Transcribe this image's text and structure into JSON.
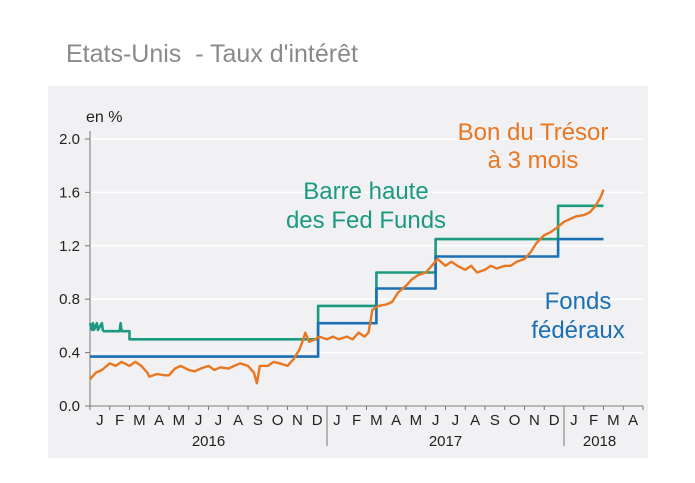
{
  "title": "Etats-Unis  - Taux d'intérêt",
  "colors": {
    "tbill": "#e87722",
    "fed_upper": "#1b9a80",
    "fed_funds": "#1a6fb5",
    "axis": "#777777",
    "grid": "#ffffff",
    "panel": "#f1f1f3"
  },
  "chart_data": {
    "type": "line",
    "ylabel": "en %",
    "ylim": [
      0,
      2.0
    ],
    "yticks": [
      "0.0",
      "0.4",
      "0.8",
      "1.2",
      "1.6",
      "2.0"
    ],
    "y_tick_values": [
      0,
      0.4,
      0.8,
      1.2,
      1.6,
      2.0
    ],
    "grid": true,
    "x_months": [
      "J",
      "F",
      "M",
      "A",
      "M",
      "J",
      "J",
      "A",
      "S",
      "O",
      "N",
      "D",
      "J",
      "F",
      "M",
      "A",
      "M",
      "J",
      "J",
      "A",
      "S",
      "O",
      "N",
      "D",
      "J",
      "F",
      "M",
      "A"
    ],
    "x_years": [
      "2016",
      "2017",
      "2018"
    ],
    "annotations": {
      "tbill": [
        "Bon du Trésor",
        "à 3 mois"
      ],
      "fed_upper": [
        "Barre haute",
        "des Fed Funds"
      ],
      "fed_funds": [
        "Fonds",
        "fédéraux"
      ]
    },
    "series": [
      {
        "key": "fed_upper",
        "points": [
          [
            0,
            0.62
          ],
          [
            0.1,
            0.57
          ],
          [
            0.15,
            0.62
          ],
          [
            0.2,
            0.57
          ],
          [
            0.35,
            0.62
          ],
          [
            0.4,
            0.57
          ],
          [
            0.6,
            0.62
          ],
          [
            0.65,
            0.57
          ],
          [
            0.7,
            0.56
          ],
          [
            1.5,
            0.56
          ],
          [
            1.55,
            0.62
          ],
          [
            1.6,
            0.56
          ],
          [
            2.0,
            0.56
          ],
          [
            2.0,
            0.5
          ],
          [
            11.55,
            0.5
          ],
          [
            11.55,
            0.75
          ],
          [
            14.5,
            0.75
          ],
          [
            14.5,
            1.0
          ],
          [
            17.5,
            1.0
          ],
          [
            17.5,
            1.25
          ],
          [
            23.7,
            1.25
          ],
          [
            23.7,
            1.5
          ],
          [
            26.0,
            1.5
          ]
        ]
      },
      {
        "key": "fed_funds",
        "points": [
          [
            0,
            0.37
          ],
          [
            11.55,
            0.37
          ],
          [
            11.55,
            0.62
          ],
          [
            14.5,
            0.62
          ],
          [
            14.5,
            0.88
          ],
          [
            17.5,
            0.88
          ],
          [
            17.5,
            1.12
          ],
          [
            23.7,
            1.12
          ],
          [
            23.7,
            1.25
          ],
          [
            26.0,
            1.25
          ]
        ]
      },
      {
        "key": "tbill",
        "points": [
          [
            0,
            0.2
          ],
          [
            0.3,
            0.25
          ],
          [
            0.6,
            0.27
          ],
          [
            1.0,
            0.32
          ],
          [
            1.3,
            0.3
          ],
          [
            1.6,
            0.33
          ],
          [
            2.0,
            0.3
          ],
          [
            2.3,
            0.33
          ],
          [
            2.6,
            0.3
          ],
          [
            2.9,
            0.25
          ],
          [
            3.0,
            0.22
          ],
          [
            3.4,
            0.24
          ],
          [
            3.8,
            0.23
          ],
          [
            4.0,
            0.23
          ],
          [
            4.3,
            0.28
          ],
          [
            4.6,
            0.3
          ],
          [
            5.0,
            0.27
          ],
          [
            5.3,
            0.26
          ],
          [
            5.6,
            0.28
          ],
          [
            6.0,
            0.3
          ],
          [
            6.3,
            0.27
          ],
          [
            6.6,
            0.29
          ],
          [
            7.0,
            0.28
          ],
          [
            7.3,
            0.3
          ],
          [
            7.6,
            0.32
          ],
          [
            8.0,
            0.3
          ],
          [
            8.3,
            0.25
          ],
          [
            8.45,
            0.17
          ],
          [
            8.6,
            0.3
          ],
          [
            9.0,
            0.3
          ],
          [
            9.3,
            0.33
          ],
          [
            9.6,
            0.32
          ],
          [
            10.0,
            0.3
          ],
          [
            10.3,
            0.35
          ],
          [
            10.6,
            0.42
          ],
          [
            10.8,
            0.5
          ],
          [
            10.9,
            0.55
          ],
          [
            11.1,
            0.48
          ],
          [
            11.4,
            0.5
          ],
          [
            11.6,
            0.52
          ],
          [
            12.0,
            0.5
          ],
          [
            12.3,
            0.52
          ],
          [
            12.6,
            0.5
          ],
          [
            13.0,
            0.52
          ],
          [
            13.3,
            0.5
          ],
          [
            13.6,
            0.55
          ],
          [
            13.9,
            0.52
          ],
          [
            14.1,
            0.55
          ],
          [
            14.3,
            0.72
          ],
          [
            14.6,
            0.75
          ],
          [
            15.0,
            0.76
          ],
          [
            15.3,
            0.78
          ],
          [
            15.6,
            0.85
          ],
          [
            16.0,
            0.9
          ],
          [
            16.3,
            0.95
          ],
          [
            16.6,
            0.98
          ],
          [
            17.0,
            1.0
          ],
          [
            17.3,
            1.05
          ],
          [
            17.6,
            1.1
          ],
          [
            18.0,
            1.05
          ],
          [
            18.3,
            1.08
          ],
          [
            18.6,
            1.05
          ],
          [
            19.0,
            1.02
          ],
          [
            19.3,
            1.05
          ],
          [
            19.6,
            1.0
          ],
          [
            20.0,
            1.02
          ],
          [
            20.3,
            1.05
          ],
          [
            20.6,
            1.03
          ],
          [
            21.0,
            1.05
          ],
          [
            21.3,
            1.05
          ],
          [
            21.6,
            1.08
          ],
          [
            22.0,
            1.1
          ],
          [
            22.3,
            1.15
          ],
          [
            22.6,
            1.22
          ],
          [
            23.0,
            1.28
          ],
          [
            23.3,
            1.3
          ],
          [
            23.6,
            1.33
          ],
          [
            24.0,
            1.38
          ],
          [
            24.3,
            1.4
          ],
          [
            24.6,
            1.42
          ],
          [
            25.0,
            1.43
          ],
          [
            25.3,
            1.45
          ],
          [
            25.6,
            1.5
          ],
          [
            25.8,
            1.55
          ],
          [
            25.9,
            1.58
          ],
          [
            26.0,
            1.62
          ]
        ]
      }
    ]
  }
}
